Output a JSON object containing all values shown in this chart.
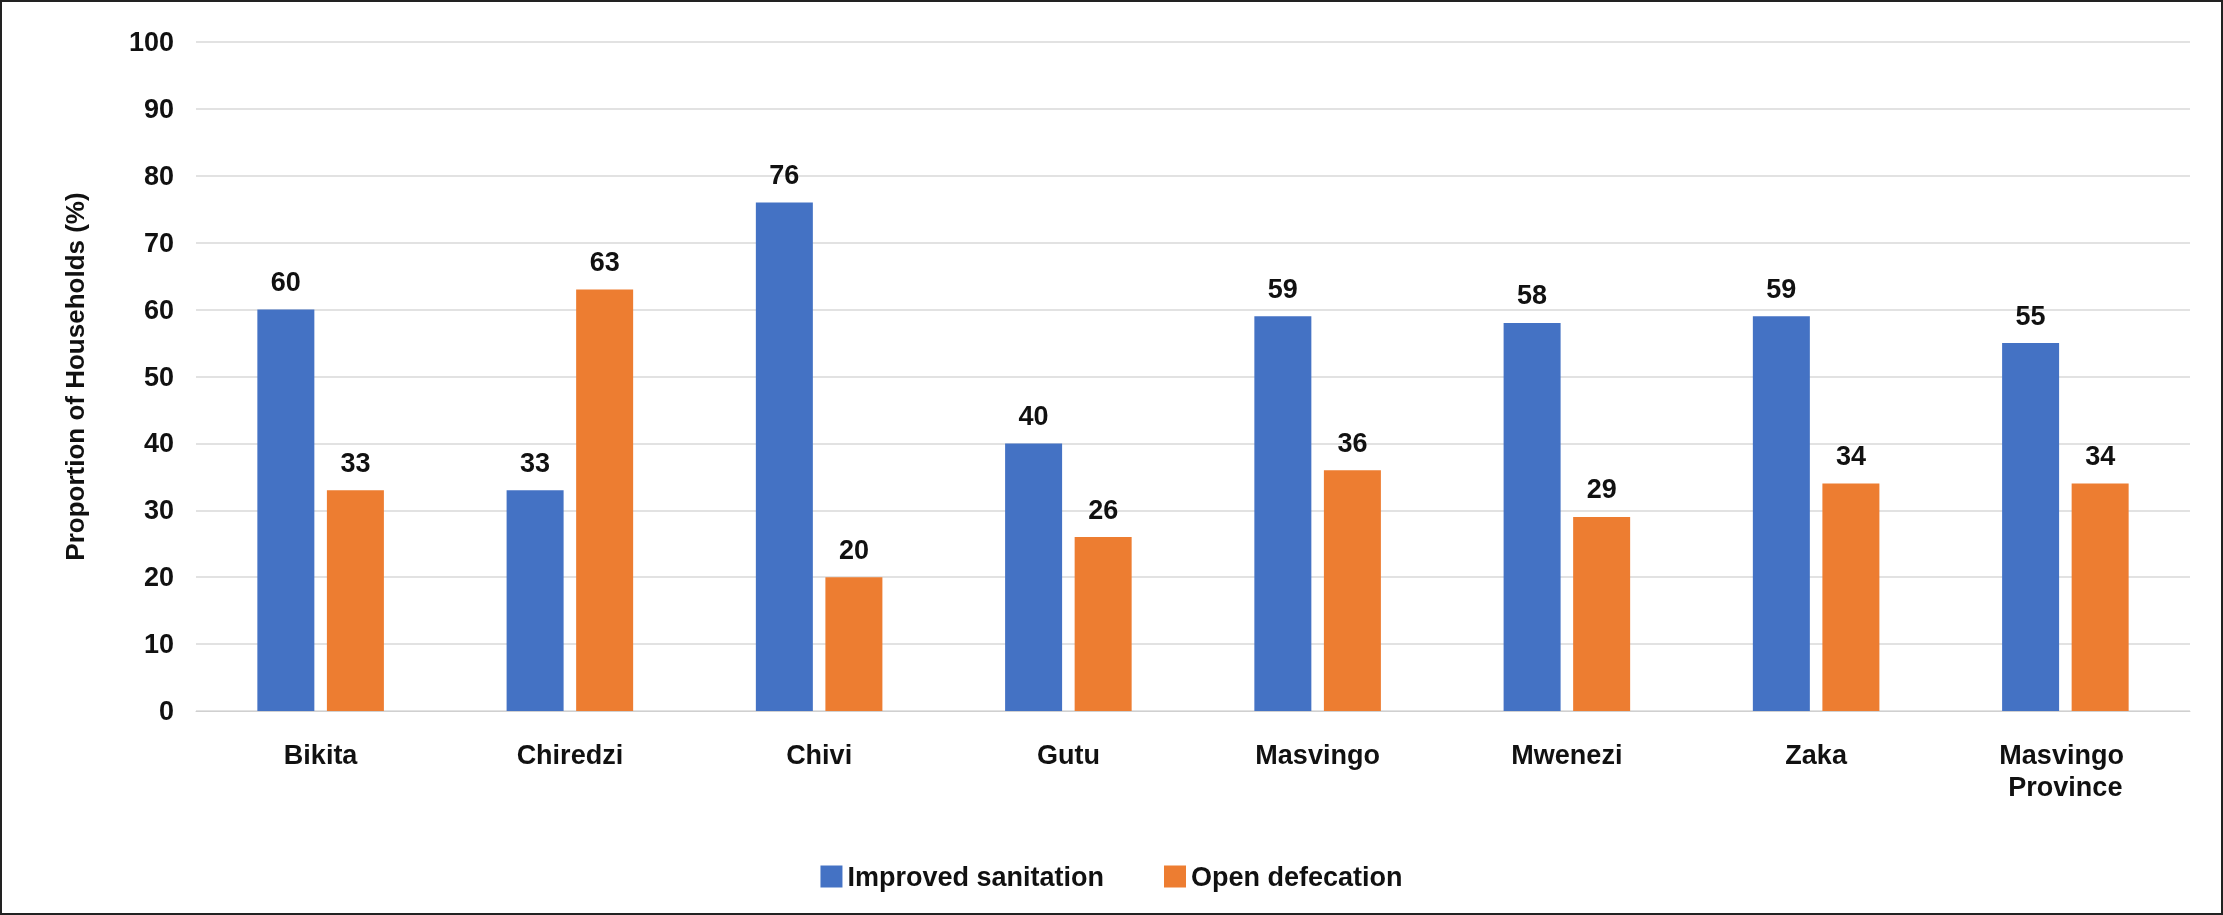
{
  "chart_data": {
    "type": "bar",
    "ylabel": "Proportion of Households (%)",
    "categories": [
      "Bikita",
      "Chiredzi",
      "Chivi",
      "Gutu",
      "Masvingo",
      "Mwenezi",
      "Zaka",
      "Masvingo Province"
    ],
    "series": [
      {
        "name": "Improved sanitation",
        "color": "#4472c4",
        "values": [
          60,
          33,
          76,
          40,
          59,
          58,
          59,
          55
        ]
      },
      {
        "name": "Open defecation",
        "color": "#ed7d31",
        "values": [
          33,
          63,
          20,
          26,
          36,
          29,
          34,
          34
        ]
      }
    ],
    "ylim": [
      0,
      100
    ],
    "yticks": [
      0,
      10,
      20,
      30,
      40,
      50,
      60,
      70,
      80,
      90,
      100
    ],
    "grid": "y",
    "legend": "bottom",
    "data_labels": true
  }
}
